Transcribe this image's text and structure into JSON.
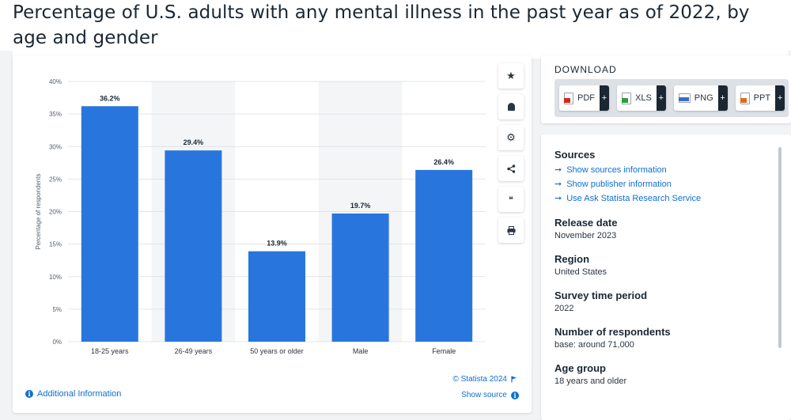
{
  "page_title": "Percentage of U.S. adults with any mental illness in the past year as of 2022, by age and gender",
  "toolbar": {
    "icons": [
      "star-icon",
      "bell-icon",
      "gear-icon",
      "share-icon",
      "quote-icon",
      "print-icon"
    ],
    "glyphs": [
      "★",
      "🔔",
      "⚙",
      "⋖",
      "❝",
      "⎙"
    ]
  },
  "footer": {
    "additional_info": "Additional Information",
    "copyright": "© Statista 2024",
    "show_source": "Show source"
  },
  "download": {
    "heading": "DOWNLOAD",
    "buttons": [
      {
        "label": "PDF",
        "color": "#d9261c"
      },
      {
        "label": "XLS",
        "color": "#2e9e3a"
      },
      {
        "label": "PNG",
        "color": "#3a6fbf"
      },
      {
        "label": "PPT",
        "color": "#e06a1b"
      }
    ],
    "plus": "+"
  },
  "meta": {
    "sources_heading": "Sources",
    "source_links": [
      "Show sources information",
      "Show publisher information",
      "Use Ask Statista Research Service"
    ],
    "release_date_heading": "Release date",
    "release_date": "November 2023",
    "region_heading": "Region",
    "region": "United States",
    "survey_period_heading": "Survey time period",
    "survey_period": "2022",
    "respondents_heading": "Number of respondents",
    "respondents": "base: around 71,000",
    "age_group_heading": "Age group",
    "age_group": "18 years and older"
  },
  "chart_data": {
    "type": "bar",
    "title": "Percentage of U.S. adults with any mental illness in the past year as of 2022, by age and gender",
    "categories": [
      "18-25 years",
      "26-49 years",
      "50 years or older",
      "Male",
      "Female"
    ],
    "values": [
      36.2,
      29.4,
      13.9,
      19.7,
      26.4
    ],
    "value_labels": [
      "36.2%",
      "29.4%",
      "13.9%",
      "19.7%",
      "26.4%"
    ],
    "xlabel": "",
    "ylabel": "Percentage of respondents",
    "ylim": [
      0,
      40
    ],
    "yticks": [
      0,
      5,
      10,
      15,
      20,
      25,
      30,
      35,
      40
    ],
    "ytick_labels": [
      "0%",
      "5%",
      "10%",
      "15%",
      "20%",
      "25%",
      "30%",
      "35%",
      "40%"
    ],
    "grid": true,
    "bar_color": "#2876dd"
  }
}
